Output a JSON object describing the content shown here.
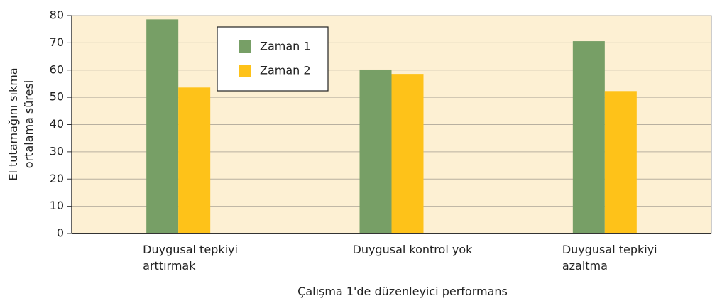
{
  "chart_data": {
    "type": "bar",
    "categories": [
      "Duygusal tepkiyi arttırmak",
      "Duygusal kontrol yok",
      "Duygusal tepkiyi azaltma"
    ],
    "series": [
      {
        "name": "Zaman 1",
        "color": "#779f66",
        "values": [
          78.6,
          60.2,
          70.6
        ]
      },
      {
        "name": "Zaman 2",
        "color": "#fec219",
        "values": [
          53.6,
          58.6,
          52.3
        ]
      }
    ],
    "xlabel": "Çalışma 1'de düzenleyici performans",
    "ylabel": "El tutamağını sıkma ortalama süresi",
    "ylim": [
      0,
      80
    ],
    "yticks": [
      0,
      10,
      20,
      30,
      40,
      50,
      60,
      70,
      80
    ],
    "grid": true,
    "legend": "upper left",
    "background": "#fdf0d3"
  }
}
